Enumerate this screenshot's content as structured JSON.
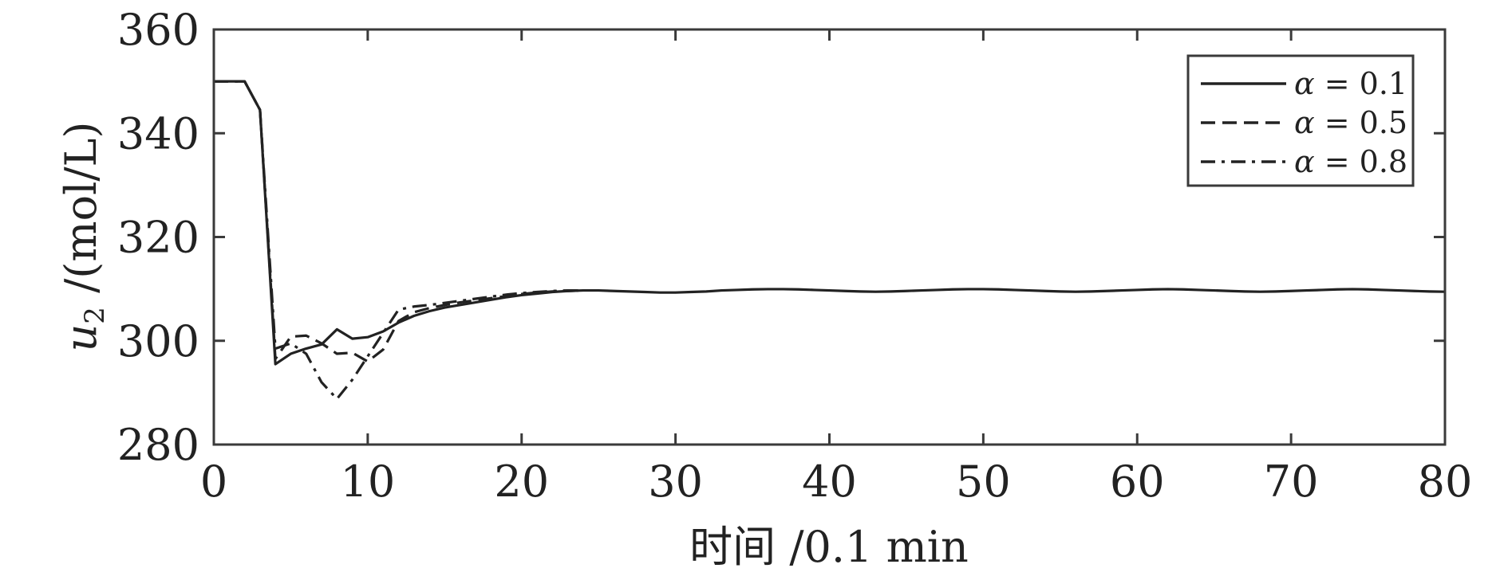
{
  "chart_data": {
    "type": "line",
    "title": "",
    "xlabel": "时间 /0.1 min",
    "ylabel_var": "u",
    "ylabel_sub": "2",
    "ylabel_unit": " /(mol/L)",
    "xlim": [
      0,
      80
    ],
    "ylim": [
      280,
      360
    ],
    "xticks": [
      0,
      10,
      20,
      30,
      40,
      50,
      60,
      70,
      80
    ],
    "yticks": [
      280,
      300,
      320,
      340,
      360
    ],
    "grid": false,
    "legend_position": "top-right",
    "series": [
      {
        "name": "α = 0.1",
        "legend_alpha": "α",
        "legend_rest": " = 0.1",
        "dash": "solid",
        "x": [
          0,
          1,
          2,
          3,
          4,
          5,
          6,
          7,
          8,
          9,
          10,
          11,
          12,
          13,
          14,
          15,
          16,
          17,
          18,
          19,
          20,
          21,
          22,
          23,
          24,
          25,
          26,
          27,
          28,
          29,
          30,
          31,
          32,
          33,
          34,
          35,
          36,
          37,
          38,
          39,
          40,
          41,
          42,
          43,
          44,
          45,
          46,
          47,
          48,
          49,
          50,
          51,
          52,
          53,
          54,
          55,
          56,
          57,
          58,
          59,
          60,
          61,
          62,
          63,
          64,
          65,
          66,
          67,
          68,
          69,
          70,
          71,
          72,
          73,
          74,
          75,
          76,
          77,
          78,
          79,
          80
        ],
        "y": [
          350,
          350,
          350,
          344.5,
          295.5,
          297.5,
          298.5,
          299.3,
          302.2,
          300.4,
          300.7,
          301.8,
          303.5,
          304.8,
          305.7,
          306.4,
          306.9,
          307.4,
          307.9,
          308.4,
          308.8,
          309.1,
          309.4,
          309.6,
          309.7,
          309.7,
          309.6,
          309.5,
          309.4,
          309.3,
          309.3,
          309.4,
          309.5,
          309.7,
          309.8,
          309.9,
          309.95,
          309.95,
          309.9,
          309.8,
          309.7,
          309.6,
          309.5,
          309.45,
          309.5,
          309.6,
          309.7,
          309.8,
          309.9,
          309.95,
          309.95,
          309.9,
          309.8,
          309.7,
          309.6,
          309.5,
          309.45,
          309.5,
          309.6,
          309.7,
          309.8,
          309.9,
          309.95,
          309.9,
          309.8,
          309.7,
          309.6,
          309.5,
          309.45,
          309.5,
          309.6,
          309.7,
          309.8,
          309.9,
          309.95,
          309.9,
          309.8,
          309.7,
          309.6,
          309.5,
          309.45
        ]
      },
      {
        "name": "α = 0.5",
        "legend_alpha": "α",
        "legend_rest": " = 0.5",
        "dash": "dashed",
        "x": [
          0,
          1,
          2,
          3,
          4,
          5,
          6,
          7,
          8,
          9,
          10,
          11,
          12,
          13,
          14,
          15,
          16,
          17,
          18,
          19,
          20,
          21,
          22,
          23,
          24
        ],
        "y": [
          350,
          350,
          350,
          344.5,
          296.5,
          300.8,
          301.0,
          299.5,
          297.5,
          297.7,
          296.0,
          298.3,
          303.8,
          305.5,
          306.3,
          306.9,
          307.4,
          307.8,
          308.2,
          308.6,
          309.0,
          309.3,
          309.5,
          309.6,
          309.7
        ]
      },
      {
        "name": "α = 0.8",
        "legend_alpha": "α",
        "legend_rest": " = 0.8",
        "dash": "dashdot",
        "x": [
          0,
          1,
          2,
          3,
          4,
          5,
          6,
          7,
          8,
          9,
          10,
          11,
          12,
          13,
          14,
          15,
          16,
          17,
          18,
          19,
          20,
          21,
          22,
          23,
          24
        ],
        "y": [
          350,
          350,
          350,
          344.5,
          298.5,
          299.5,
          297.5,
          292.0,
          288.8,
          292.5,
          297.0,
          301.5,
          306.0,
          306.6,
          306.9,
          307.3,
          307.7,
          308.1,
          308.5,
          308.9,
          309.2,
          309.4,
          309.6,
          309.7,
          309.7
        ]
      }
    ]
  }
}
